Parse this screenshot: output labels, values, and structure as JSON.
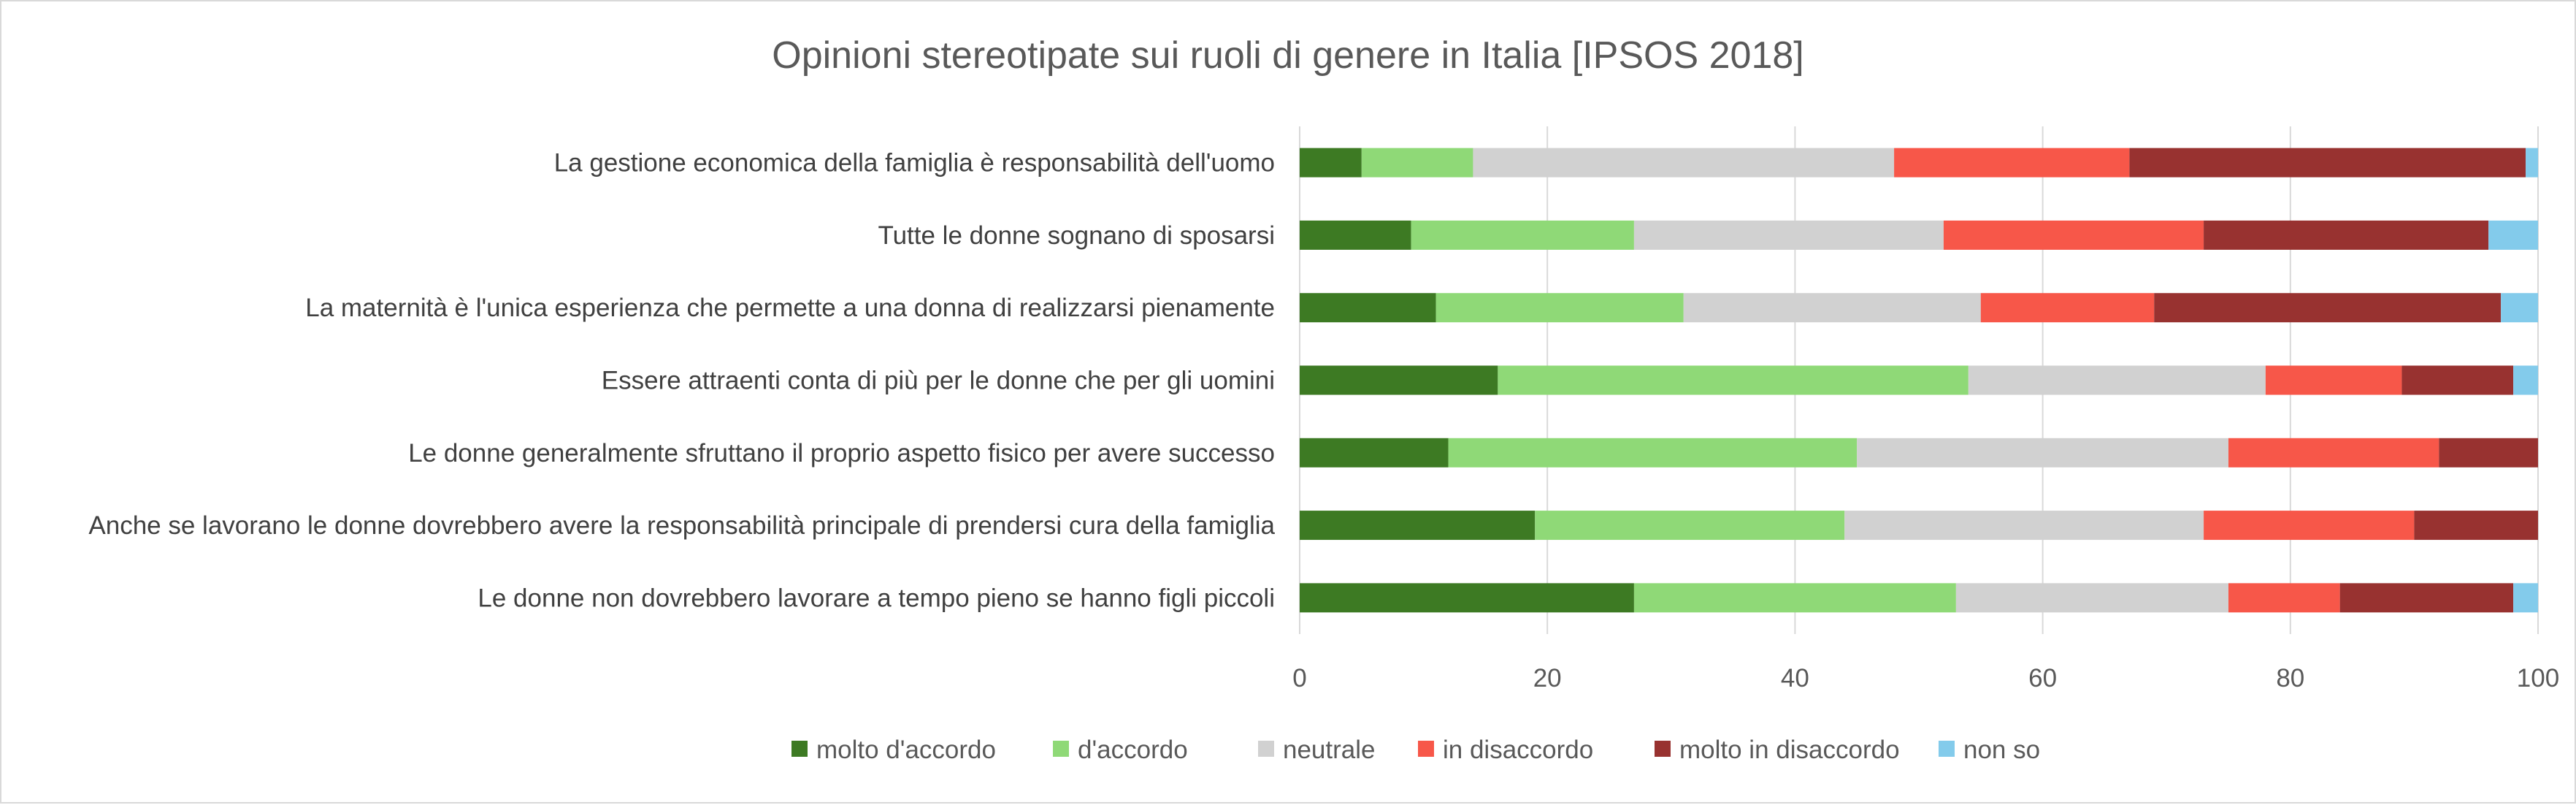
{
  "chart_data": {
    "type": "bar",
    "orientation": "horizontal-stacked",
    "title": "Opinioni stereotipate sui ruoli di genere in Italia [IPSOS 2018]",
    "categories": [
      "La gestione economica della famiglia è responsabilità dell'uomo",
      "Tutte le donne sognano di sposarsi",
      "La maternità è l'unica esperienza che permette a una donna di realizzarsi pienamente",
      "Essere attraenti conta di più per le donne che per gli uomini",
      "Le donne generalmente sfruttano il proprio aspetto fisico per avere successo",
      "Anche se lavorano le donne dovrebbero avere la responsabilità principale di prendersi cura della famiglia",
      "Le donne non dovrebbero lavorare a tempo pieno se hanno figli piccoli"
    ],
    "series": [
      {
        "name": "molto d'accordo",
        "color": "#3d7a23",
        "values": [
          5,
          9,
          11,
          16,
          12,
          19,
          27
        ]
      },
      {
        "name": "d'accordo",
        "color": "#8fd977",
        "values": [
          9,
          18,
          20,
          38,
          33,
          25,
          26
        ]
      },
      {
        "name": "neutrale",
        "color": "#d1d1d1",
        "values": [
          34,
          25,
          24,
          24,
          30,
          29,
          22
        ]
      },
      {
        "name": "in disaccordo",
        "color": "#f75749",
        "values": [
          19,
          21,
          14,
          11,
          17,
          17,
          9
        ]
      },
      {
        "name": "molto in disaccordo",
        "color": "#983230",
        "values": [
          32,
          23,
          28,
          9,
          8,
          10,
          14
        ]
      },
      {
        "name": "non so",
        "color": "#83cbeb",
        "values": [
          1,
          4,
          3,
          2,
          0,
          0,
          2
        ]
      }
    ],
    "xlim": [
      0,
      100
    ],
    "xticks": [
      "0",
      "20",
      "40",
      "60",
      "80",
      "100"
    ],
    "grid": true,
    "legend_position": "bottom"
  }
}
